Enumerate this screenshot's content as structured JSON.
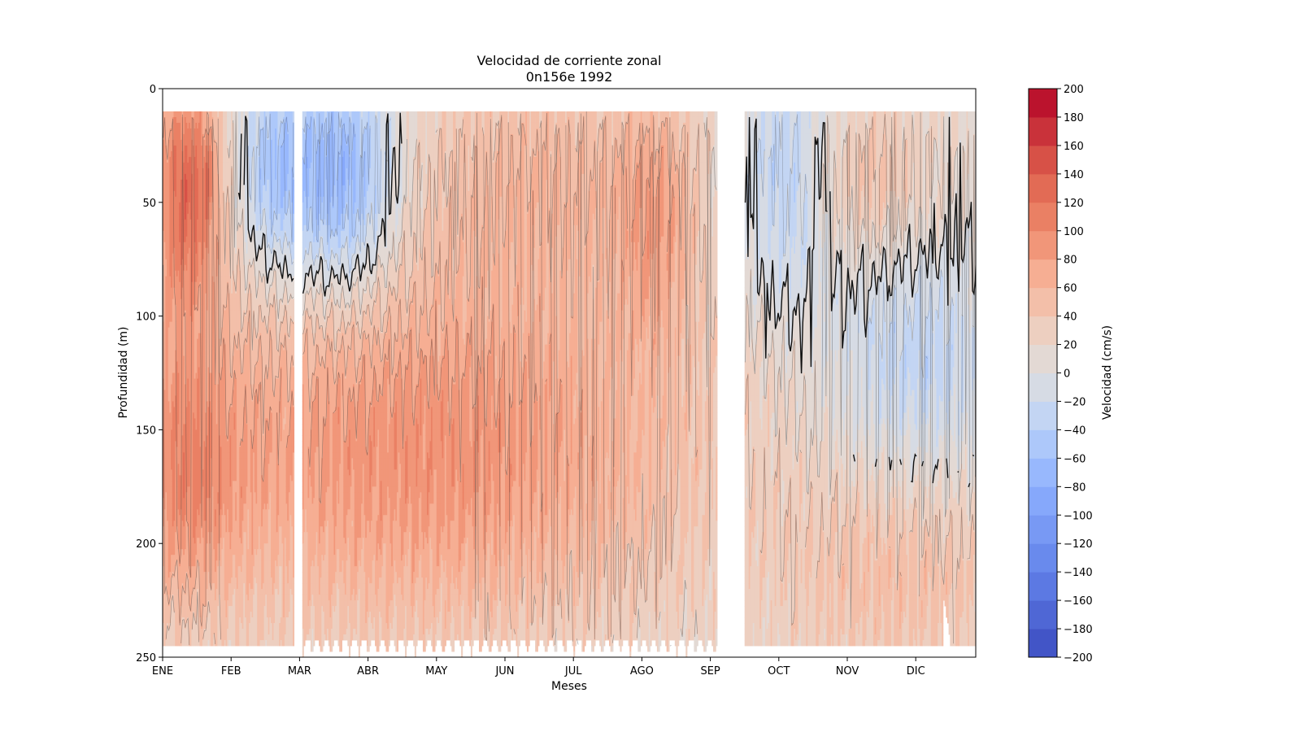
{
  "chart_data": {
    "type": "heatmap",
    "title": "Velocidad de corriente zonal",
    "subtitle": "0n156e 1992",
    "xlabel": "Meses",
    "ylabel": "Profundidad (m)",
    "x_ticks": [
      "ENE",
      "FEB",
      "MAR",
      "ABR",
      "MAY",
      "JUN",
      "JUL",
      "AGO",
      "SEP",
      "OCT",
      "NOV",
      "DIC"
    ],
    "y_ticks": [
      0,
      50,
      100,
      150,
      200,
      250
    ],
    "ylim": [
      250,
      0
    ],
    "y_inverted": true,
    "x_range_months": [
      0,
      11.9
    ],
    "data_depth_range": [
      10,
      245
    ],
    "data_gaps_months": [
      [
        1.92,
        2.05
      ],
      [
        8.1,
        8.5
      ]
    ],
    "colorbar": {
      "label": "Velocidad (cm/s)",
      "levels": [
        -200,
        -180,
        -160,
        -140,
        -120,
        -100,
        -80,
        -60,
        -40,
        -20,
        0,
        20,
        40,
        60,
        80,
        100,
        120,
        140,
        160,
        180,
        200
      ],
      "tick_labels": [
        "200",
        "180",
        "160",
        "140",
        "120",
        "100",
        "80",
        "60",
        "40",
        "20",
        "0",
        "−20",
        "−40",
        "−60",
        "−80",
        "−100",
        "−120",
        "−140",
        "−160",
        "−180",
        "−200"
      ],
      "colors": [
        "#3b4cc0",
        "#4f69d9",
        "#6282ea",
        "#779af7",
        "#8db0fe",
        "#a3c2fe",
        "#b9d0f9",
        "#cad8ef",
        "#dadce0",
        "#e3d9d3",
        "#efcfbf",
        "#f5c0a7",
        "#f7aa8c",
        "#f39475",
        "#e9785d",
        "#dd5f4b",
        "#cd423b",
        "#b40426"
      ],
      "band_colors_ordered_low_to_high": [
        "#3b4cc0",
        "#5470de",
        "#6f92f3",
        "#8caffe",
        "#a8c5fe",
        "#bfd3f6",
        "#d4dbe6",
        "#e4d9d2",
        "#f2cbb7",
        "#f7b497",
        "#f49a7b",
        "#e57058",
        "#d85646",
        "#c53334",
        "#b40426",
        "#c0282f",
        "#b40426",
        "#b40426",
        "#b40426",
        "#b40426"
      ],
      "range": [
        -200,
        200
      ]
    },
    "field_summary": [
      {
        "months": [
          0.0,
          0.7
        ],
        "depth": [
          10,
          80
        ],
        "value_cm_s": 90
      },
      {
        "months": [
          0.55,
          0.7
        ],
        "depth": [
          25,
          55
        ],
        "value_cm_s": 115
      },
      {
        "months": [
          0.9,
          1.92
        ],
        "depth": [
          10,
          70
        ],
        "value_cm_s": -25
      },
      {
        "months": [
          0.0,
          1.92
        ],
        "depth": [
          110,
          230
        ],
        "value_cm_s": 65
      },
      {
        "months": [
          2.05,
          3.2
        ],
        "depth": [
          10,
          70
        ],
        "value_cm_s": -70
      },
      {
        "months": [
          2.05,
          7.0
        ],
        "depth": [
          110,
          240
        ],
        "value_cm_s": 70
      },
      {
        "months": [
          3.2,
          8.1
        ],
        "depth": [
          10,
          90
        ],
        "value_cm_s": 30
      },
      {
        "months": [
          8.5,
          9.5
        ],
        "depth": [
          10,
          70
        ],
        "value_cm_s": -40
      },
      {
        "months": [
          10.2,
          11.3
        ],
        "depth": [
          90,
          160
        ],
        "value_cm_s": -35
      },
      {
        "months": [
          8.5,
          11.9
        ],
        "depth": [
          180,
          245
        ],
        "value_cm_s": 35
      }
    ]
  }
}
